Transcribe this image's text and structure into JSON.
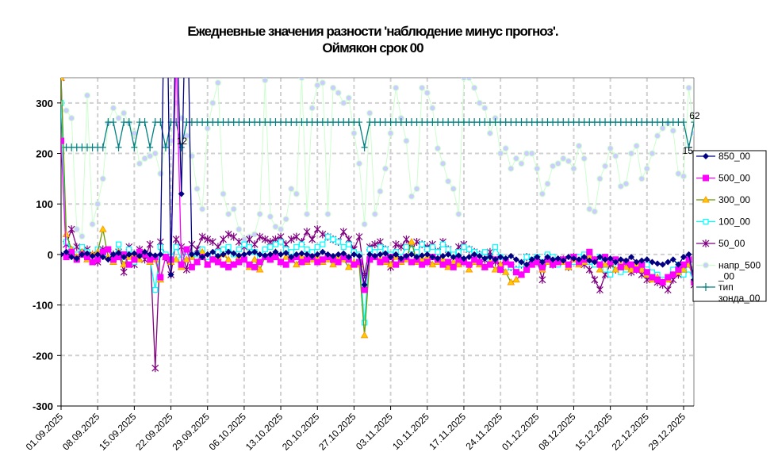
{
  "chart_data": {
    "type": "line",
    "title": "Ежедневные значения разности 'наблюдение минус прогноз'.",
    "subtitle": "Оймякон     срок 00",
    "ylim": [
      -300,
      350
    ],
    "yticks": [
      -300,
      -200,
      -100,
      0,
      100,
      200,
      300
    ],
    "grid": true,
    "legend_position": "right",
    "x_start": "01.09.2025",
    "x_end": "31.12.2025",
    "x_tick_labels": [
      "01.09.2025",
      "08.09.2025",
      "15.09.2025",
      "22.09.2025",
      "29.09.2025",
      "06.10.2025",
      "13.10.2025",
      "20.10.2025",
      "27.10.2025",
      "03.11.2025",
      "10.11.2025",
      "17.11.2025",
      "24.11.2025",
      "01.12.2025",
      "08.12.2025",
      "15.12.2025",
      "22.12.2025",
      "29.12.2025"
    ],
    "series": [
      {
        "name": "850_00",
        "color": "#000080",
        "marker": "diamond",
        "values": [
          0,
          5,
          -5,
          -8,
          0,
          2,
          -3,
          0,
          -5,
          -10,
          0,
          3,
          -5,
          0,
          2,
          -3,
          5,
          0,
          -2,
          0,
          700,
          -40,
          500,
          120,
          600,
          0,
          2,
          -5,
          0,
          5,
          -3,
          0,
          5,
          2,
          -2,
          0,
          3,
          5,
          0,
          -2,
          0,
          5,
          0,
          3,
          -5,
          0,
          2,
          0,
          -3,
          0,
          5,
          0,
          -3,
          0,
          2,
          -5,
          0,
          -3,
          -60,
          0,
          -3,
          0,
          2,
          -5,
          0,
          -8,
          -3,
          0,
          -5,
          -2,
          0,
          -5,
          -8,
          -3,
          0,
          -5,
          -2,
          -8,
          -5,
          0,
          -3,
          -8,
          -5,
          -10,
          -5,
          -8,
          -3,
          -10,
          -15,
          -20,
          -10,
          -5,
          -15,
          -5,
          -10,
          -8,
          -12,
          -5,
          -8,
          -10,
          -5,
          -12,
          -15,
          -5,
          -10,
          -8,
          -15,
          -10,
          -12,
          -5,
          -15,
          -12,
          -10,
          -15,
          -18,
          -20,
          -15,
          -10,
          -20,
          -5,
          0,
          -50
        ]
      },
      {
        "name": "500_00",
        "color": "#ff00ff",
        "marker": "square",
        "values": [
          225,
          -5,
          5,
          -10,
          0,
          -5,
          -15,
          -10,
          5,
          10,
          -10,
          -5,
          0,
          -20,
          -10,
          5,
          0,
          -10,
          -5,
          -45,
          -5,
          -10,
          400,
          -20,
          10,
          -25,
          -15,
          -5,
          -20,
          -10,
          -15,
          -20,
          -25,
          -20,
          -15,
          -10,
          -20,
          -25,
          -15,
          -5,
          -10,
          -5,
          -15,
          -20,
          -10,
          -5,
          -15,
          -10,
          -5,
          -15,
          -10,
          -5,
          -10,
          -15,
          -5,
          -10,
          -20,
          -15,
          -70,
          -10,
          -5,
          -15,
          -10,
          -5,
          -20,
          -10,
          -5,
          -15,
          -10,
          -20,
          -15,
          -5,
          -10,
          -20,
          -15,
          -25,
          -10,
          -15,
          -20,
          -10,
          -15,
          -25,
          -20,
          -10,
          -30,
          -15,
          -20,
          -35,
          -40,
          -30,
          -20,
          -15,
          -25,
          -10,
          -20,
          -15,
          -10,
          -20,
          -5,
          -15,
          -10,
          5,
          -10,
          -20,
          -5,
          -15,
          -10,
          -25,
          -15,
          -20,
          -30,
          -20,
          -35,
          -45,
          -50,
          -55,
          -45,
          -40,
          -30,
          -20,
          -10,
          -55
        ]
      },
      {
        "name": "300_00",
        "color": "#669900",
        "fill": "#ffcc00",
        "marker": "triangle",
        "values": [
          350,
          40,
          10,
          -5,
          5,
          -10,
          0,
          5,
          50,
          -5,
          -15,
          5,
          -20,
          -5,
          0,
          -10,
          5,
          -15,
          -10,
          -50,
          -5,
          -15,
          -10,
          -25,
          -10,
          -5,
          -15,
          5,
          -20,
          -10,
          -5,
          0,
          -10,
          -20,
          -5,
          -10,
          -25,
          -10,
          -30,
          -5,
          -10,
          5,
          -15,
          -5,
          -10,
          -20,
          -5,
          -15,
          -10,
          -5,
          -15,
          -10,
          -20,
          -5,
          -10,
          -25,
          -15,
          -20,
          -160,
          -10,
          -5,
          -10,
          -15,
          -20,
          -5,
          -15,
          -10,
          25,
          -15,
          -10,
          -5,
          -20,
          -15,
          -10,
          -25,
          -15,
          -20,
          -10,
          -30,
          -15,
          -20,
          -25,
          -15,
          -30,
          -20,
          -35,
          -55,
          -50,
          -40,
          -25,
          -20,
          -10,
          -30,
          -15,
          -20,
          -10,
          -15,
          -25,
          -10,
          -20,
          -15,
          -5,
          -10,
          -30,
          -20,
          -15,
          -30,
          -20,
          -25,
          -30,
          -20,
          -30,
          -40,
          -50,
          -45,
          -55,
          -50,
          -40,
          -35,
          -30,
          -20,
          -50
        ]
      },
      {
        "name": "100_00",
        "color": "#00ffff",
        "marker": "hollow-square",
        "values": [
          300,
          25,
          10,
          0,
          15,
          5,
          -5,
          10,
          5,
          0,
          -10,
          20,
          -5,
          10,
          -15,
          5,
          0,
          -10,
          -70,
          15,
          0,
          -5,
          15,
          -10,
          5,
          -5,
          0,
          10,
          -5,
          0,
          5,
          10,
          15,
          0,
          10,
          20,
          15,
          5,
          -5,
          10,
          15,
          20,
          25,
          10,
          5,
          15,
          20,
          10,
          5,
          15,
          20,
          35,
          30,
          25,
          15,
          20,
          5,
          0,
          -135,
          10,
          5,
          15,
          10,
          0,
          5,
          -5,
          15,
          10,
          5,
          20,
          10,
          15,
          5,
          20,
          10,
          0,
          5,
          15,
          10,
          5,
          0,
          5,
          -10,
          15,
          -5,
          -10,
          -25,
          -30,
          -20,
          -5,
          -10,
          -5,
          -15,
          0,
          -5,
          -20,
          -10,
          -25,
          -15,
          -5,
          0,
          -15,
          -20,
          -5,
          -30,
          -40,
          -25,
          -35,
          -30,
          -20,
          -30,
          -25,
          -20,
          -35,
          -40,
          -50,
          -45,
          -30,
          -20,
          -40,
          -30,
          -55
        ]
      },
      {
        "name": "50_00",
        "color": "#800080",
        "marker": "asterisk",
        "values": [
          350,
          20,
          50,
          15,
          5,
          10,
          0,
          -15,
          10,
          5,
          0,
          5,
          -35,
          15,
          -20,
          10,
          -10,
          20,
          -225,
          25,
          -5,
          -40,
          30,
          15,
          -30,
          20,
          10,
          35,
          30,
          25,
          15,
          30,
          40,
          35,
          25,
          15,
          30,
          20,
          35,
          30,
          25,
          30,
          35,
          20,
          30,
          35,
          25,
          45,
          30,
          50,
          40,
          35,
          30,
          25,
          45,
          30,
          10,
          35,
          -40,
          15,
          20,
          25,
          10,
          -25,
          20,
          15,
          30,
          10,
          25,
          20,
          15,
          20,
          5,
          25,
          10,
          -5,
          15,
          20,
          10,
          5,
          0,
          -10,
          5,
          -15,
          -20,
          -10,
          -25,
          -30,
          -20,
          -5,
          -15,
          -10,
          -50,
          -5,
          -20,
          -15,
          -10,
          -25,
          -5,
          -15,
          -20,
          -30,
          -50,
          -70,
          -40,
          -20,
          -30,
          -25,
          -15,
          -35,
          -30,
          -40,
          -50,
          -45,
          -55,
          -60,
          -70,
          -50,
          -40,
          -30,
          -20,
          -60
        ]
      },
      {
        "name": "напр_500_00",
        "color": "#ccffcc",
        "fill": "#ccccff",
        "marker": "circle",
        "values": [
          285,
          285,
          270,
          50,
          36,
          315,
          60,
          100,
          150,
          260,
          290,
          270,
          280,
          260,
          240,
          180,
          190,
          195,
          200,
          160,
          215,
          225,
          300,
          270,
          235,
          195,
          130,
          90,
          250,
          300,
          340,
          120,
          80,
          90,
          50,
          30,
          35,
          40,
          80,
          345,
          75,
          55,
          50,
          70,
          130,
          120,
          350,
          80,
          290,
          335,
          340,
          80,
          330,
          320,
          300,
          310,
          240,
          180,
          60,
          280,
          80,
          125,
          170,
          240,
          330,
          270,
          225,
          115,
          130,
          330,
          320,
          290,
          210,
          180,
          145,
          130,
          80,
          350,
          350,
          330,
          300,
          290,
          240,
          270,
          200,
          210,
          170,
          190,
          180,
          200,
          200,
          170,
          120,
          140,
          175,
          180,
          190,
          185,
          170,
          215,
          190,
          90,
          85,
          150,
          175,
          210,
          195,
          135,
          140,
          200,
          215,
          150,
          170,
          200,
          235,
          250,
          260,
          245,
          160,
          155,
          330,
          240
        ]
      },
      {
        "name": "тип зонда_00",
        "color": "#008080",
        "marker": "plus",
        "values": [
          212,
          212,
          212,
          212,
          212,
          212,
          212,
          212,
          212,
          262,
          262,
          212,
          262,
          262,
          212,
          262,
          262,
          212,
          262,
          262,
          212,
          262,
          262,
          212,
          262,
          262,
          262,
          262,
          262,
          262,
          262,
          262,
          262,
          262,
          262,
          262,
          262,
          262,
          262,
          262,
          262,
          262,
          262,
          262,
          262,
          262,
          262,
          262,
          262,
          262,
          262,
          262,
          262,
          262,
          262,
          262,
          262,
          262,
          212,
          262,
          262,
          262,
          262,
          262,
          262,
          262,
          262,
          262,
          262,
          262,
          262,
          262,
          262,
          262,
          262,
          262,
          262,
          262,
          262,
          262,
          262,
          262,
          262,
          262,
          262,
          262,
          262,
          262,
          262,
          262,
          262,
          262,
          262,
          262,
          262,
          262,
          262,
          262,
          262,
          262,
          262,
          262,
          262,
          262,
          262,
          262,
          262,
          262,
          262,
          262,
          262,
          262,
          262,
          262,
          262,
          262,
          262,
          262,
          262,
          262,
          212,
          262
        ]
      }
    ],
    "data_labels": [
      {
        "series": "тип зонда_00",
        "day": 23,
        "text": "12"
      },
      {
        "series": "тип зонда_00",
        "day": 121,
        "text": "62"
      },
      {
        "series": "тип зонда_00",
        "day": 120,
        "text": "15"
      }
    ],
    "legend": [
      "850_00",
      "500_00",
      "300_00",
      "100_00",
      "50_00",
      "напр_500\n_00",
      "тип\nзонда_00"
    ]
  }
}
